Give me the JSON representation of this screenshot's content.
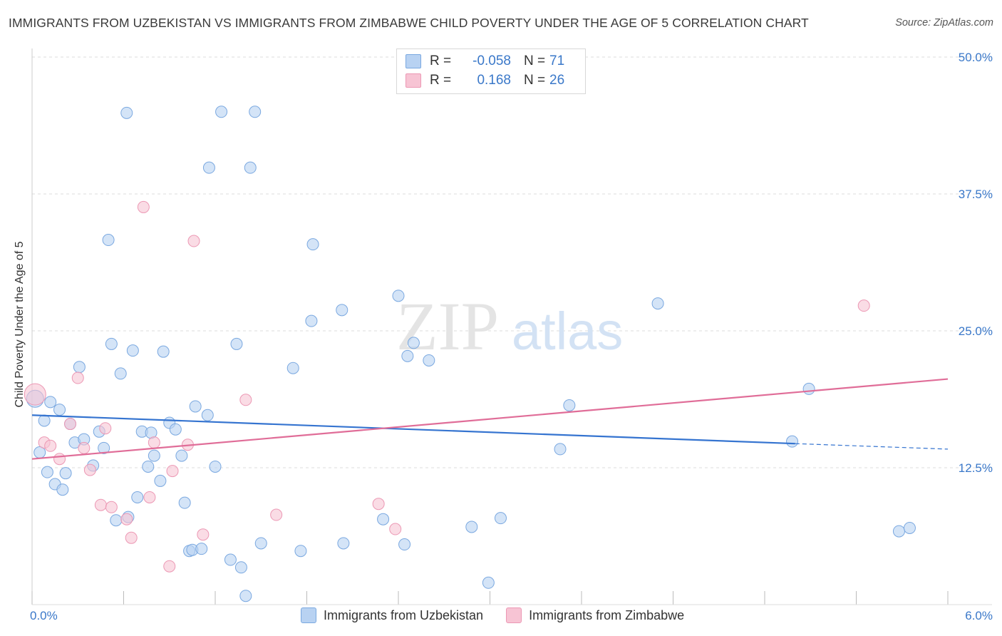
{
  "title": "IMMIGRANTS FROM UZBEKISTAN VS IMMIGRANTS FROM ZIMBABWE CHILD POVERTY UNDER THE AGE OF 5 CORRELATION CHART",
  "source": "Source: ZipAtlas.com",
  "watermark": {
    "zip": "ZIP",
    "atlas": "atlas"
  },
  "legend": {
    "r_label": "R =",
    "n_label": "N =",
    "rows": [
      {
        "r": "-0.058",
        "n": "71"
      },
      {
        "r": "0.168",
        "n": "26"
      }
    ]
  },
  "chart_data": {
    "type": "scatter",
    "title": "IMMIGRANTS FROM UZBEKISTAN VS IMMIGRANTS FROM ZIMBABWE CHILD POVERTY UNDER THE AGE OF 5 CORRELATION CHART",
    "xlabel": "",
    "ylabel": "Child Poverty Under the Age of 5",
    "xlim": [
      0,
      6
    ],
    "ylim": [
      0,
      50
    ],
    "x_tick_labels": [
      "0.0%",
      "6.0%"
    ],
    "y_ticks": [
      12.5,
      25,
      37.5,
      50
    ],
    "y_tick_labels": [
      "12.5%",
      "25.0%",
      "37.5%",
      "50.0%"
    ],
    "grid": true,
    "legend_position": "top-center",
    "colors": {
      "uzbekistan_fill": "#b8d2f2",
      "uzbekistan_stroke": "#7aa8e0",
      "uzbekistan_line": "#3574d0",
      "zimbabwe_fill": "#f7c4d4",
      "zimbabwe_stroke": "#ec98b4",
      "zimbabwe_line": "#e06d98",
      "grid": "#dddddd",
      "tick_text": "#3a78c9"
    },
    "series": [
      {
        "name": "Immigrants from Uzbekistan",
        "trend": {
          "x": [
            0,
            5.0
          ],
          "y": [
            17.3,
            14.7
          ],
          "dash_to_x": 6.0,
          "dash_to_y": 14.2
        },
        "points": [
          [
            0.02,
            18.8
          ],
          [
            0.05,
            13.9
          ],
          [
            0.08,
            16.8
          ],
          [
            0.1,
            12.1
          ],
          [
            0.12,
            18.5
          ],
          [
            0.15,
            11.0
          ],
          [
            0.18,
            17.8
          ],
          [
            0.2,
            10.5
          ],
          [
            0.22,
            12.0
          ],
          [
            0.25,
            16.5
          ],
          [
            0.28,
            14.8
          ],
          [
            0.31,
            21.7
          ],
          [
            0.34,
            15.1
          ],
          [
            0.4,
            12.7
          ],
          [
            0.44,
            15.8
          ],
          [
            0.47,
            14.3
          ],
          [
            0.52,
            23.8
          ],
          [
            0.5,
            33.3
          ],
          [
            0.55,
            7.7
          ],
          [
            0.58,
            21.1
          ],
          [
            0.62,
            44.9
          ],
          [
            0.63,
            8.0
          ],
          [
            0.66,
            23.2
          ],
          [
            0.69,
            9.8
          ],
          [
            0.72,
            15.8
          ],
          [
            0.76,
            12.6
          ],
          [
            0.78,
            15.7
          ],
          [
            0.8,
            13.6
          ],
          [
            0.84,
            11.3
          ],
          [
            0.86,
            23.1
          ],
          [
            0.9,
            16.6
          ],
          [
            0.94,
            16.0
          ],
          [
            0.98,
            13.6
          ],
          [
            1.0,
            9.3
          ],
          [
            1.03,
            4.9
          ],
          [
            1.05,
            5.0
          ],
          [
            1.07,
            18.1
          ],
          [
            1.11,
            5.1
          ],
          [
            1.15,
            17.3
          ],
          [
            1.16,
            39.9
          ],
          [
            1.2,
            12.6
          ],
          [
            1.24,
            45.0
          ],
          [
            1.3,
            4.1
          ],
          [
            1.34,
            23.8
          ],
          [
            1.37,
            3.4
          ],
          [
            1.4,
            0.8
          ],
          [
            1.43,
            39.9
          ],
          [
            1.46,
            45.0
          ],
          [
            1.5,
            5.6
          ],
          [
            1.71,
            21.6
          ],
          [
            1.76,
            4.9
          ],
          [
            1.83,
            25.9
          ],
          [
            1.84,
            32.9
          ],
          [
            2.04,
            5.6
          ],
          [
            2.03,
            26.9
          ],
          [
            2.3,
            7.8
          ],
          [
            2.4,
            28.2
          ],
          [
            2.44,
            5.5
          ],
          [
            2.46,
            22.7
          ],
          [
            2.5,
            23.9
          ],
          [
            2.6,
            22.3
          ],
          [
            2.88,
            7.1
          ],
          [
            2.99,
            2.0
          ],
          [
            3.07,
            7.9
          ],
          [
            3.46,
            14.2
          ],
          [
            3.52,
            18.2
          ],
          [
            4.1,
            27.5
          ],
          [
            4.98,
            14.9
          ],
          [
            5.09,
            19.7
          ],
          [
            5.68,
            6.7
          ],
          [
            5.75,
            7.0
          ]
        ]
      },
      {
        "name": "Immigrants from Zimbabwe",
        "trend": {
          "x": [
            0,
            6.0
          ],
          "y": [
            13.3,
            20.6
          ]
        },
        "points": [
          [
            0.02,
            19.2
          ],
          [
            0.08,
            14.8
          ],
          [
            0.12,
            14.5
          ],
          [
            0.18,
            13.3
          ],
          [
            0.25,
            16.5
          ],
          [
            0.3,
            20.7
          ],
          [
            0.34,
            14.3
          ],
          [
            0.38,
            12.3
          ],
          [
            0.45,
            9.1
          ],
          [
            0.48,
            16.1
          ],
          [
            0.52,
            8.9
          ],
          [
            0.62,
            7.8
          ],
          [
            0.65,
            6.1
          ],
          [
            0.73,
            36.3
          ],
          [
            0.77,
            9.8
          ],
          [
            0.8,
            14.8
          ],
          [
            0.9,
            3.5
          ],
          [
            0.92,
            12.2
          ],
          [
            1.02,
            14.6
          ],
          [
            1.06,
            33.2
          ],
          [
            1.12,
            6.4
          ],
          [
            1.4,
            18.7
          ],
          [
            1.6,
            8.2
          ],
          [
            2.27,
            9.2
          ],
          [
            2.38,
            6.9
          ],
          [
            5.45,
            27.3
          ]
        ]
      }
    ]
  },
  "bottom_legend": [
    "Immigrants from Uzbekistan",
    "Immigrants from Zimbabwe"
  ]
}
